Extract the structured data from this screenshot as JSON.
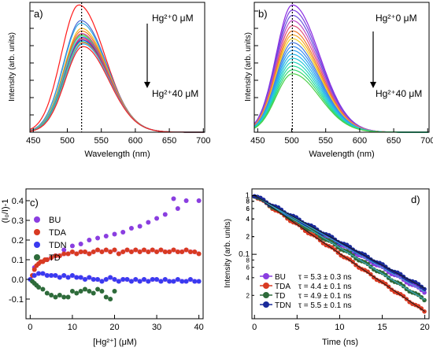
{
  "chart_data": [
    {
      "type": "line",
      "panel_label": "a)",
      "xlabel": "Wavelength (nm)",
      "ylabel": "Intensity (arb. units)",
      "xlim": [
        445,
        702
      ],
      "ylim": [
        0,
        1.0
      ],
      "xticks": [
        450,
        500,
        550,
        600,
        650,
        700
      ],
      "peak_marker_x": 521,
      "annotation_top": "Hg²⁺0 μM",
      "annotation_bottom": "Hg²⁺40 μM",
      "series": [
        {
          "color": "#ff1a1a",
          "peak_x": 517,
          "peak": 0.98
        },
        {
          "color": "#4a6bd6",
          "peak_x": 520,
          "peak": 0.86
        },
        {
          "color": "#2fa8e0",
          "peak_x": 520,
          "peak": 0.84
        },
        {
          "color": "#f2b81e",
          "peak_x": 521,
          "peak": 0.8
        },
        {
          "color": "#f07a1a",
          "peak_x": 521,
          "peak": 0.78
        },
        {
          "color": "#c83c9c",
          "peak_x": 521,
          "peak": 0.76
        },
        {
          "color": "#6fd23c",
          "peak_x": 521,
          "peak": 0.75
        },
        {
          "color": "#3adcc0",
          "peak_x": 521,
          "peak": 0.74
        },
        {
          "color": "#8e3bd0",
          "peak_x": 522,
          "peak": 0.73
        },
        {
          "color": "#e8484a",
          "peak_x": 522,
          "peak": 0.72
        },
        {
          "color": "#2d2dd8",
          "peak_x": 522,
          "peak": 0.71
        },
        {
          "color": "#1bd7b0",
          "peak_x": 522,
          "peak": 0.7
        },
        {
          "color": "#f0601e",
          "peak_x": 523,
          "peak": 0.69
        },
        {
          "color": "#33b8f0",
          "peak_x": 523,
          "peak": 0.68
        },
        {
          "color": "#ff2020",
          "peak_x": 523,
          "peak": 0.66
        }
      ]
    },
    {
      "type": "line",
      "panel_label": "b)",
      "xlabel": "Wavelength (nm)",
      "ylabel": "Intensity (arb. units)",
      "xlim": [
        445,
        702
      ],
      "ylim": [
        0,
        1.0
      ],
      "xticks": [
        450,
        500,
        550,
        600,
        650,
        700
      ],
      "peak_marker_x": 501,
      "annotation_top": "Hg²⁺0 μM",
      "annotation_bottom": "Hg²⁺40 μM",
      "series": [
        {
          "color": "#8a2be2",
          "peak": 0.98
        },
        {
          "color": "#7b3fe0",
          "peak": 0.94
        },
        {
          "color": "#6a51dc",
          "peak": 0.9
        },
        {
          "color": "#c04cc8",
          "peak": 0.86
        },
        {
          "color": "#e0507a",
          "peak": 0.82
        },
        {
          "color": "#f07a2a",
          "peak": 0.78
        },
        {
          "color": "#f5a623",
          "peak": 0.75
        },
        {
          "color": "#f2d02a",
          "peak": 0.72
        },
        {
          "color": "#4a7ae0",
          "peak": 0.69
        },
        {
          "color": "#3a8ef0",
          "peak": 0.66
        },
        {
          "color": "#2aa2f0",
          "peak": 0.63
        },
        {
          "color": "#28b6e8",
          "peak": 0.6
        },
        {
          "color": "#26c6d8",
          "peak": 0.57
        },
        {
          "color": "#24d4c0",
          "peak": 0.54
        },
        {
          "color": "#22dc9c",
          "peak": 0.51
        },
        {
          "color": "#34d870",
          "peak": 0.48
        },
        {
          "color": "#4ccf48",
          "peak": 0.45
        }
      ]
    },
    {
      "type": "scatter",
      "panel_label": "c)",
      "xlabel": "[Hg²⁺] (μM)",
      "ylabel": "(I₀/I)-1",
      "xlim": [
        -1,
        41
      ],
      "ylim": [
        -0.2,
        0.46
      ],
      "xticks": [
        0,
        10,
        20,
        30,
        40
      ],
      "yticks": [
        -0.1,
        0.0,
        0.1,
        0.2,
        0.3,
        0.4
      ],
      "ytick_labels": [
        "-0.1",
        "0.0",
        "0.1",
        "0.2",
        "0.3",
        "0.4"
      ],
      "legend_position": "top-left",
      "series": [
        {
          "name": "BU",
          "color": "#8a3ee0",
          "x": [
            1,
            4,
            6,
            8,
            10,
            12,
            14,
            16,
            18,
            20,
            22,
            24,
            26,
            28,
            30,
            32,
            34,
            35,
            37,
            40
          ],
          "y": [
            0.06,
            0.1,
            0.12,
            0.15,
            0.17,
            0.18,
            0.2,
            0.21,
            0.22,
            0.23,
            0.24,
            0.26,
            0.27,
            0.29,
            0.31,
            0.33,
            0.41,
            0.36,
            0.4,
            0.4
          ]
        },
        {
          "name": "TDA",
          "color": "#d83a22",
          "band": "#f0c0f0",
          "x": [
            0.5,
            1,
            1.5,
            2,
            2.5,
            3,
            3.5,
            4,
            5,
            6,
            7,
            8,
            9,
            10,
            11,
            12,
            13,
            14,
            15,
            16,
            17,
            18,
            19,
            20,
            21,
            22,
            23,
            24,
            25,
            26,
            27,
            28,
            29,
            30,
            31,
            32,
            33,
            34,
            35,
            36,
            37,
            38,
            39,
            40
          ],
          "y": [
            0.02,
            0.05,
            0.07,
            0.08,
            0.09,
            0.09,
            0.1,
            0.1,
            0.11,
            0.12,
            0.12,
            0.13,
            0.13,
            0.14,
            0.13,
            0.14,
            0.14,
            0.13,
            0.14,
            0.15,
            0.14,
            0.15,
            0.14,
            0.15,
            0.13,
            0.14,
            0.15,
            0.14,
            0.15,
            0.14,
            0.15,
            0.14,
            0.15,
            0.14,
            0.15,
            0.14,
            0.14,
            0.15,
            0.14,
            0.14,
            0.15,
            0.14,
            0.14,
            0.13
          ]
        },
        {
          "name": "TDN",
          "color": "#3a3af0",
          "band": "#f0c0f0",
          "x": [
            0,
            1,
            2,
            3,
            4,
            5,
            6,
            7,
            8,
            9,
            10,
            11,
            12,
            13,
            14,
            15,
            16,
            17,
            18,
            19,
            20,
            21,
            22,
            23,
            24,
            25,
            26,
            27,
            28,
            29,
            30,
            31,
            32,
            33,
            34,
            35,
            36,
            37,
            38,
            39,
            40
          ],
          "y": [
            0.0,
            0.02,
            0.03,
            0.03,
            0.02,
            0.02,
            0.02,
            0.01,
            0.02,
            0.01,
            0.02,
            0.01,
            0.01,
            0.0,
            0.01,
            0.0,
            0.0,
            -0.01,
            0.0,
            0.01,
            0.0,
            -0.01,
            0.0,
            0.0,
            -0.01,
            0.0,
            -0.01,
            0.0,
            -0.01,
            0.0,
            0.0,
            -0.01,
            0.0,
            -0.01,
            -0.01,
            0.0,
            -0.01,
            -0.01,
            0.0,
            -0.01,
            -0.01
          ]
        },
        {
          "name": "TD",
          "color": "#2e6b3a",
          "x": [
            0.5,
            1,
            1.5,
            2,
            3,
            4,
            5,
            6,
            7,
            8,
            9,
            10,
            11,
            12,
            13,
            14,
            15,
            16,
            17,
            18,
            19,
            20
          ],
          "y": [
            -0.01,
            -0.02,
            -0.03,
            -0.04,
            -0.05,
            -0.07,
            -0.08,
            -0.09,
            -0.08,
            -0.09,
            -0.09,
            -0.06,
            -0.07,
            -0.06,
            -0.05,
            -0.06,
            -0.07,
            -0.05,
            -0.06,
            -0.09,
            -0.1,
            -0.06
          ]
        }
      ]
    },
    {
      "type": "scatter",
      "panel_label": "d)",
      "xlabel": "Time (ns)",
      "ylabel": "Intensity (arb. units)",
      "xlim": [
        -0.3,
        20.5
      ],
      "ylim": [
        0.008,
        1.3
      ],
      "yscale": "log",
      "xticks": [
        0,
        5,
        10,
        15,
        20
      ],
      "ytick_labels": [
        "1",
        "0.1"
      ],
      "legend_position": "bottom-left",
      "series": [
        {
          "name": "BU",
          "color": "#8a3ee0",
          "tau_label": "τ = 5.3 ± 0.3  ns",
          "tau": 5.3
        },
        {
          "name": "TDA",
          "color": "#d83a22",
          "tau_label": "τ = 4.4 ± 0.1  ns",
          "tau": 4.4
        },
        {
          "name": "TD",
          "color": "#2e6b3a",
          "tau_label": "τ = 4.9 ± 0.1  ns",
          "tau": 4.9
        },
        {
          "name": "TDN",
          "color": "#1a2a9a",
          "tau_label": "τ = 5.5 ± 0.1  ns",
          "tau": 5.5
        }
      ],
      "fit_colors": [
        "#3ab0d8",
        "#1a1a1a"
      ]
    }
  ]
}
